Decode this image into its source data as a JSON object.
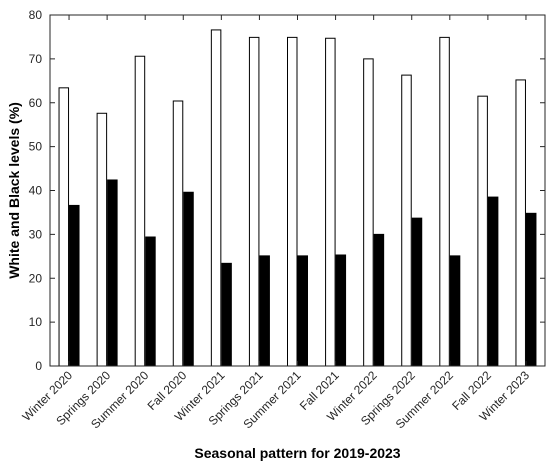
{
  "chart_data": {
    "type": "bar",
    "categories": [
      "Winter 2020",
      "Springs 2020",
      "Summer 2020",
      "Fall 2020",
      "Winter 2021",
      "Springs 2021",
      "Summer 2021",
      "Fall 2021",
      "Winter 2022",
      "Springs 2022",
      "Summer 2022",
      "Fall 2022",
      "Winter 2023"
    ],
    "series": [
      {
        "values": [
          63.4,
          57.6,
          70.6,
          60.4,
          76.6,
          74.9,
          74.9,
          74.7,
          70.0,
          66.3,
          74.9,
          61.5,
          65.2
        ],
        "color": "#ffffff"
      },
      {
        "values": [
          36.6,
          42.4,
          29.4,
          39.6,
          23.4,
          25.1,
          25.1,
          25.3,
          30.0,
          33.7,
          25.1,
          38.5,
          34.8
        ],
        "color": "#000000"
      }
    ],
    "title": "",
    "xlabel": "Seasonal pattern for 2019-2023",
    "ylabel": "White and Black levels (%)",
    "ylim": [
      0,
      80
    ],
    "yticks": [
      0,
      10,
      20,
      30,
      40,
      50,
      60,
      70,
      80
    ],
    "grid": false,
    "legend": "none"
  }
}
